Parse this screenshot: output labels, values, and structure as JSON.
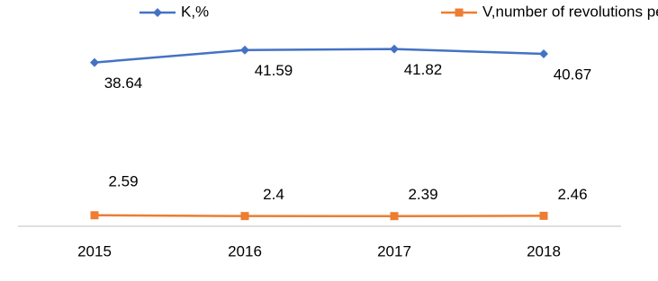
{
  "chart_data": {
    "type": "line",
    "categories": [
      "2015",
      "2016",
      "2017",
      "2018"
    ],
    "series": [
      {
        "name": "K,%",
        "color": "#4472c4",
        "marker": "diamond",
        "values": [
          38.64,
          41.59,
          41.82,
          40.67
        ]
      },
      {
        "name": "V,number of revolutions per year",
        "color": "#ed7d31",
        "marker": "square",
        "values": [
          2.59,
          2.4,
          2.39,
          2.46
        ]
      }
    ],
    "ylim": [
      0,
      50
    ]
  }
}
